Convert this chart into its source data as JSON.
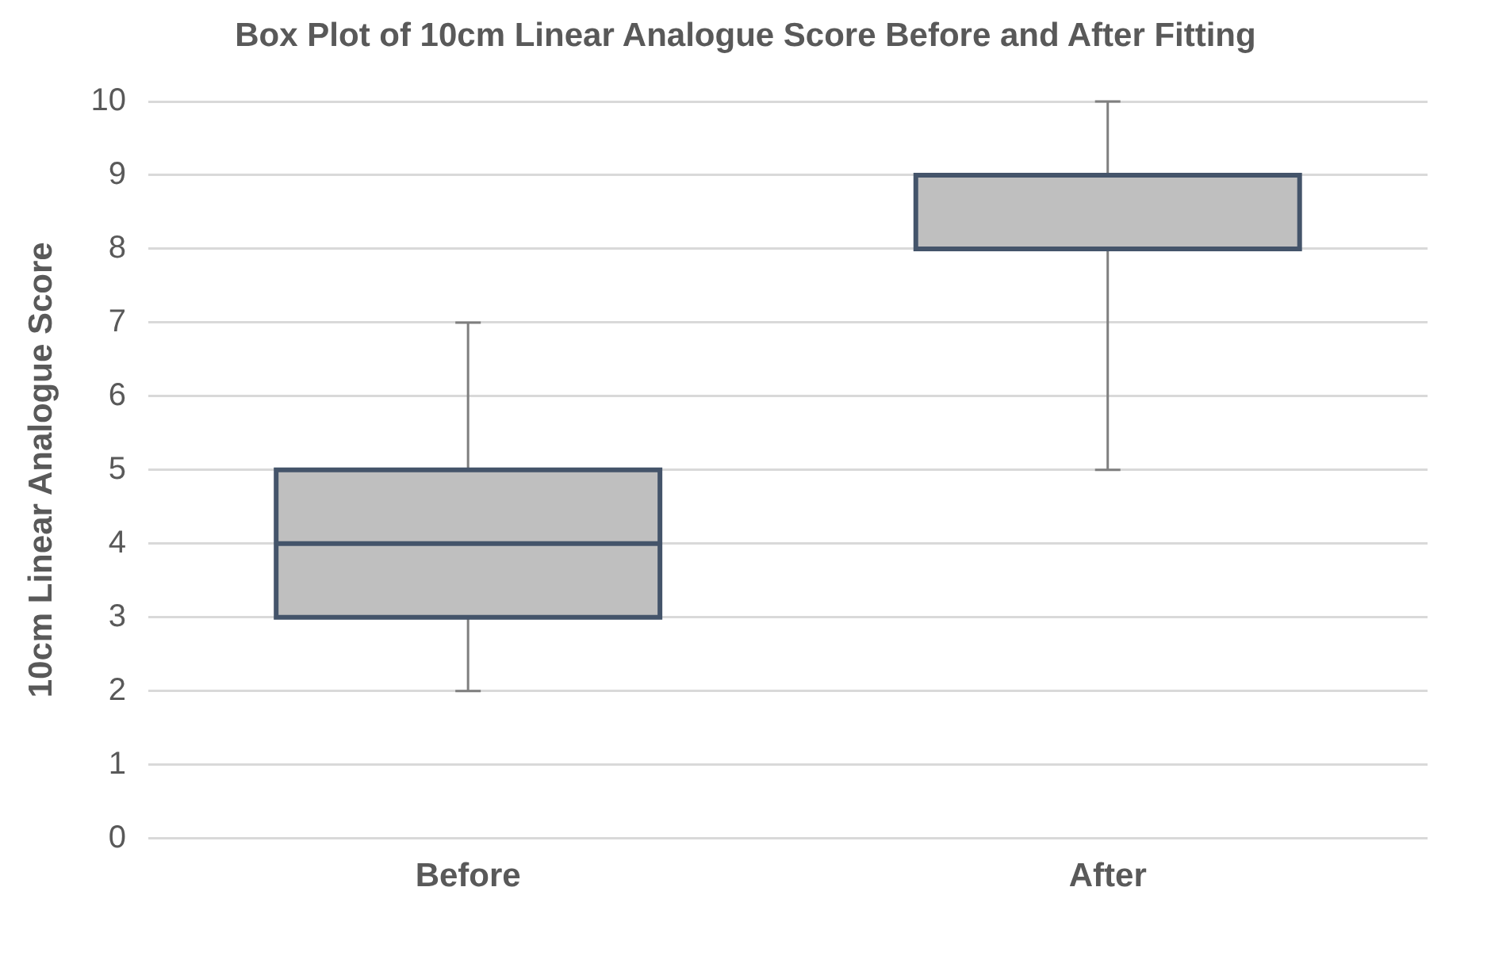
{
  "chart_data": {
    "type": "box",
    "title": "Box Plot of 10cm Linear Analogue Score Before and After Fitting",
    "ylabel": "10cm Linear Analogue Score",
    "categories": [
      "Before",
      "After"
    ],
    "boxes": [
      {
        "low": 2,
        "q1": 3,
        "median": 4,
        "q3": 5,
        "high": 7
      },
      {
        "low": 5,
        "q1": 8,
        "median": 9,
        "q3": 9,
        "high": 10
      }
    ],
    "color": "#bfbfbf",
    "ylim": [
      0,
      10
    ],
    "yticks": [
      0,
      1,
      2,
      3,
      4,
      5,
      6,
      7,
      8,
      9,
      10
    ],
    "grid": "y",
    "legend": false
  }
}
